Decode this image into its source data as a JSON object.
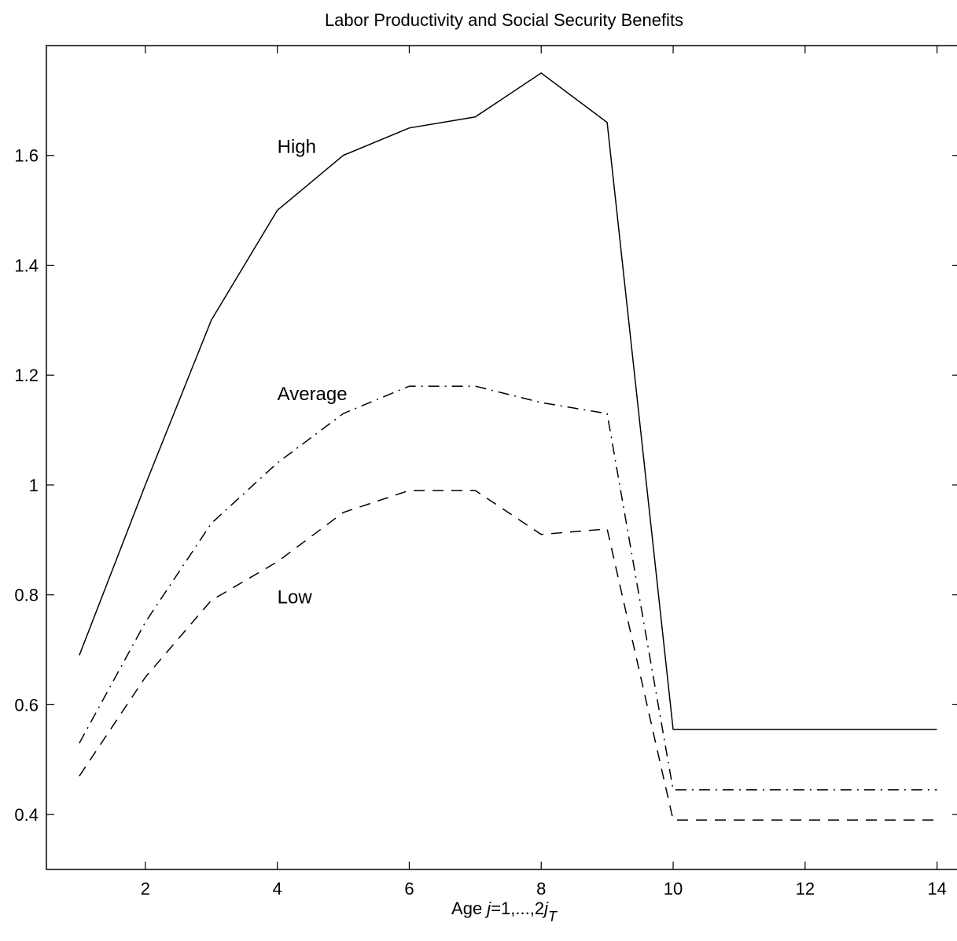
{
  "chart_data": {
    "type": "line",
    "title": "Labor Productivity and Social Security Benefits",
    "xlabel": {
      "prefix": "Age  ",
      "var": "j",
      "mid": "=1,...,2",
      "var2": "j",
      "sub": "T"
    },
    "ylabel": "",
    "xlim": [
      0.5,
      14.35
    ],
    "ylim": [
      0.3,
      1.8
    ],
    "grid": false,
    "x_ticks": [
      2,
      4,
      6,
      8,
      10,
      12,
      14
    ],
    "x_tick_labels": [
      "2",
      "4",
      "6",
      "8",
      "10",
      "12",
      "14"
    ],
    "y_ticks": [
      0.4,
      0.6,
      0.8,
      1.0,
      1.2,
      1.4,
      1.6
    ],
    "y_tick_labels": [
      "0.4",
      "0.6",
      "0.8",
      "1",
      "1.2",
      "1.4",
      "1.6"
    ],
    "x": [
      1,
      2,
      3,
      4,
      5,
      6,
      7,
      8,
      9,
      10,
      11,
      12,
      13,
      14
    ],
    "series": [
      {
        "style": "solid",
        "values": [
          0.69,
          1.0,
          1.3,
          1.5,
          1.6,
          1.65,
          1.67,
          1.75,
          1.66,
          0.555,
          0.555,
          0.555,
          0.555,
          0.555
        ]
      },
      {
        "style": "dashdot",
        "values": [
          0.53,
          0.75,
          0.93,
          1.04,
          1.13,
          1.18,
          1.18,
          1.15,
          1.13,
          0.445,
          0.445,
          0.445,
          0.445,
          0.445
        ]
      },
      {
        "style": "dashed",
        "values": [
          0.47,
          0.65,
          0.79,
          0.86,
          0.95,
          0.99,
          0.99,
          0.91,
          0.92,
          0.39,
          0.39,
          0.39,
          0.39,
          0.39
        ]
      }
    ],
    "annotations": [
      {
        "text": "High",
        "x": 4.0,
        "y": 1.61
      },
      {
        "text": "Average",
        "x": 4.0,
        "y": 1.16
      },
      {
        "text": "Low",
        "x": 4.0,
        "y": 0.79
      }
    ]
  }
}
